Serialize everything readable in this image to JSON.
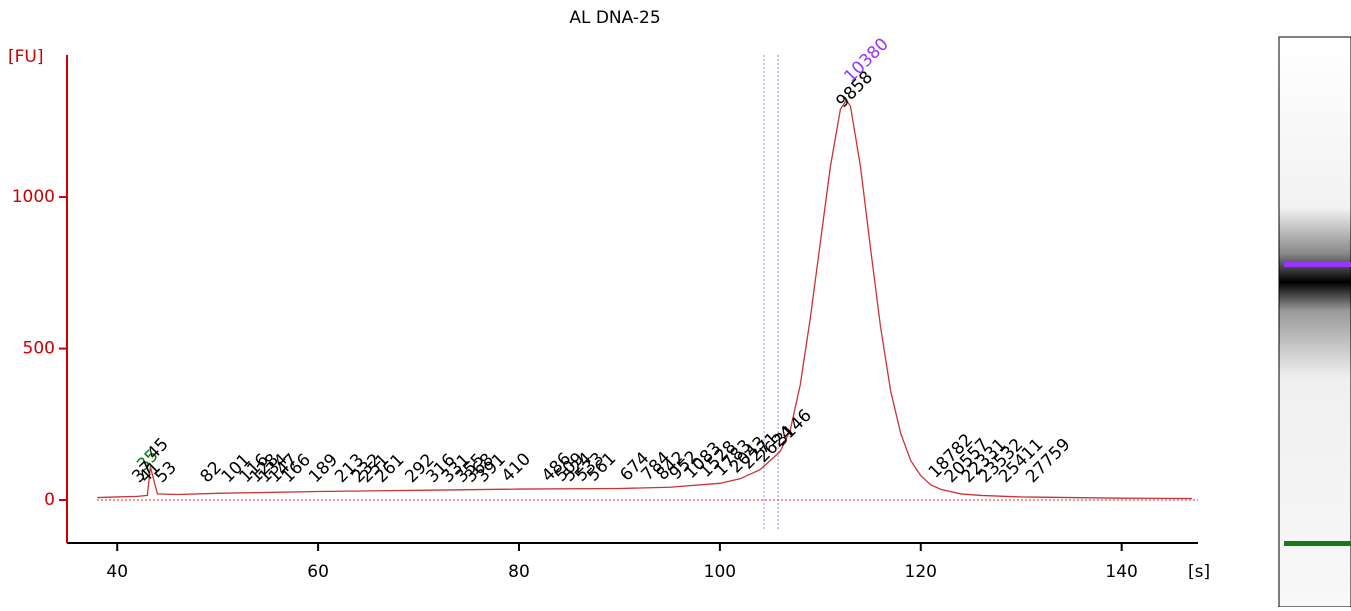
{
  "chart_data": {
    "type": "line",
    "title": "AL DNA-25",
    "y_label": "[FU]",
    "x_label": "[s]",
    "xlim": [
      35,
      147.6
    ],
    "ylim": [
      -142,
      1469
    ],
    "xticks": [
      40,
      60,
      80,
      100,
      120,
      140
    ],
    "yticks": [
      0,
      500,
      1000
    ],
    "series": [
      {
        "name": "AL DNA-25",
        "color": "#cc3333",
        "x": [
          38,
          40,
          42,
          43,
          43.3,
          44,
          46,
          50,
          60,
          70,
          80,
          90,
          95,
          100,
          102,
          104,
          106,
          107,
          108,
          109,
          110,
          111,
          112,
          112.6,
          113,
          114,
          115,
          116,
          117,
          118,
          119,
          120,
          121,
          122,
          124,
          126,
          130,
          135,
          140,
          147
        ],
        "values": [
          8,
          10,
          12,
          15,
          110,
          20,
          18,
          22,
          28,
          32,
          36,
          38,
          42,
          55,
          70,
          100,
          160,
          230,
          380,
          600,
          850,
          1100,
          1290,
          1320,
          1300,
          1100,
          830,
          570,
          360,
          220,
          130,
          80,
          50,
          35,
          20,
          15,
          10,
          8,
          6,
          5
        ]
      }
    ],
    "peak_label_color": "#000000",
    "peaks": [
      {
        "label": "35",
        "x": 42.3,
        "color": "#008000"
      },
      {
        "label": "37",
        "x": 41.8
      },
      {
        "label": "41",
        "x": 42.5
      },
      {
        "label": "45",
        "x": 43.3
      },
      {
        "label": "53",
        "x": 44.1
      },
      {
        "label": "82",
        "x": 48.6
      },
      {
        "label": "101",
        "x": 50.7
      },
      {
        "label": "116",
        "x": 52.5
      },
      {
        "label": "128",
        "x": 53.5
      },
      {
        "label": "134",
        "x": 54.4
      },
      {
        "label": "147",
        "x": 55.4
      },
      {
        "label": "166",
        "x": 56.7
      },
      {
        "label": "189",
        "x": 59.4
      },
      {
        "label": "213",
        "x": 62.0
      },
      {
        "label": "232",
        "x": 63.7
      },
      {
        "label": "251",
        "x": 64.5
      },
      {
        "label": "261",
        "x": 66.0
      },
      {
        "label": "292",
        "x": 69.0
      },
      {
        "label": "316",
        "x": 71.1
      },
      {
        "label": "331",
        "x": 72.6
      },
      {
        "label": "355",
        "x": 74.0
      },
      {
        "label": "368",
        "x": 74.9
      },
      {
        "label": "391",
        "x": 76.1
      },
      {
        "label": "410",
        "x": 78.6
      },
      {
        "label": "486",
        "x": 82.6
      },
      {
        "label": "509",
        "x": 83.9
      },
      {
        "label": "524",
        "x": 84.7
      },
      {
        "label": "533",
        "x": 85.9
      },
      {
        "label": "561",
        "x": 87.1
      },
      {
        "label": "674",
        "x": 90.4
      },
      {
        "label": "784",
        "x": 92.5
      },
      {
        "label": "842",
        "x": 94.0
      },
      {
        "label": "952",
        "x": 95.3
      },
      {
        "label": "1083",
        "x": 96.8
      },
      {
        "label": "1528",
        "x": 98.3
      },
      {
        "label": "1783",
        "x": 99.8
      },
      {
        "label": "2043",
        "x": 101.3
      },
      {
        "label": "2271",
        "x": 102.5
      },
      {
        "label": "2624",
        "x": 104.0
      },
      {
        "label": "3146",
        "x": 105.8
      },
      {
        "label": "9858",
        "x": 111.9
      },
      {
        "label": "10380",
        "x": 112.7,
        "color": "#9933ff"
      },
      {
        "label": "18782",
        "x": 121.1
      },
      {
        "label": "20557",
        "x": 122.7
      },
      {
        "label": "22331",
        "x": 124.4
      },
      {
        "label": "23532",
        "x": 126.1
      },
      {
        "label": "25411",
        "x": 128.1
      },
      {
        "label": "27759",
        "x": 130.8
      }
    ],
    "markers": [
      104.4,
      105.8
    ]
  }
}
